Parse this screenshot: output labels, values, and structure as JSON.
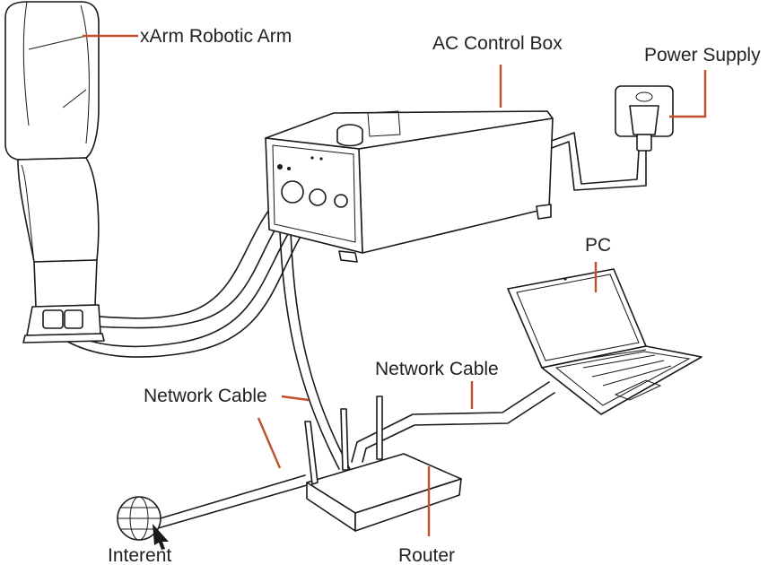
{
  "labels": {
    "robot_arm": "xArm Robotic Arm",
    "control_box": "AC Control Box",
    "power_supply": "Power Supply",
    "pc": "PC",
    "network_cable_right": "Network Cable",
    "network_cable_left": "Network Cable",
    "internet": "Interent",
    "router": "Router"
  },
  "colors": {
    "callout": "#c0502a",
    "ink": "#1a1a1a",
    "background": "#ffffff"
  }
}
